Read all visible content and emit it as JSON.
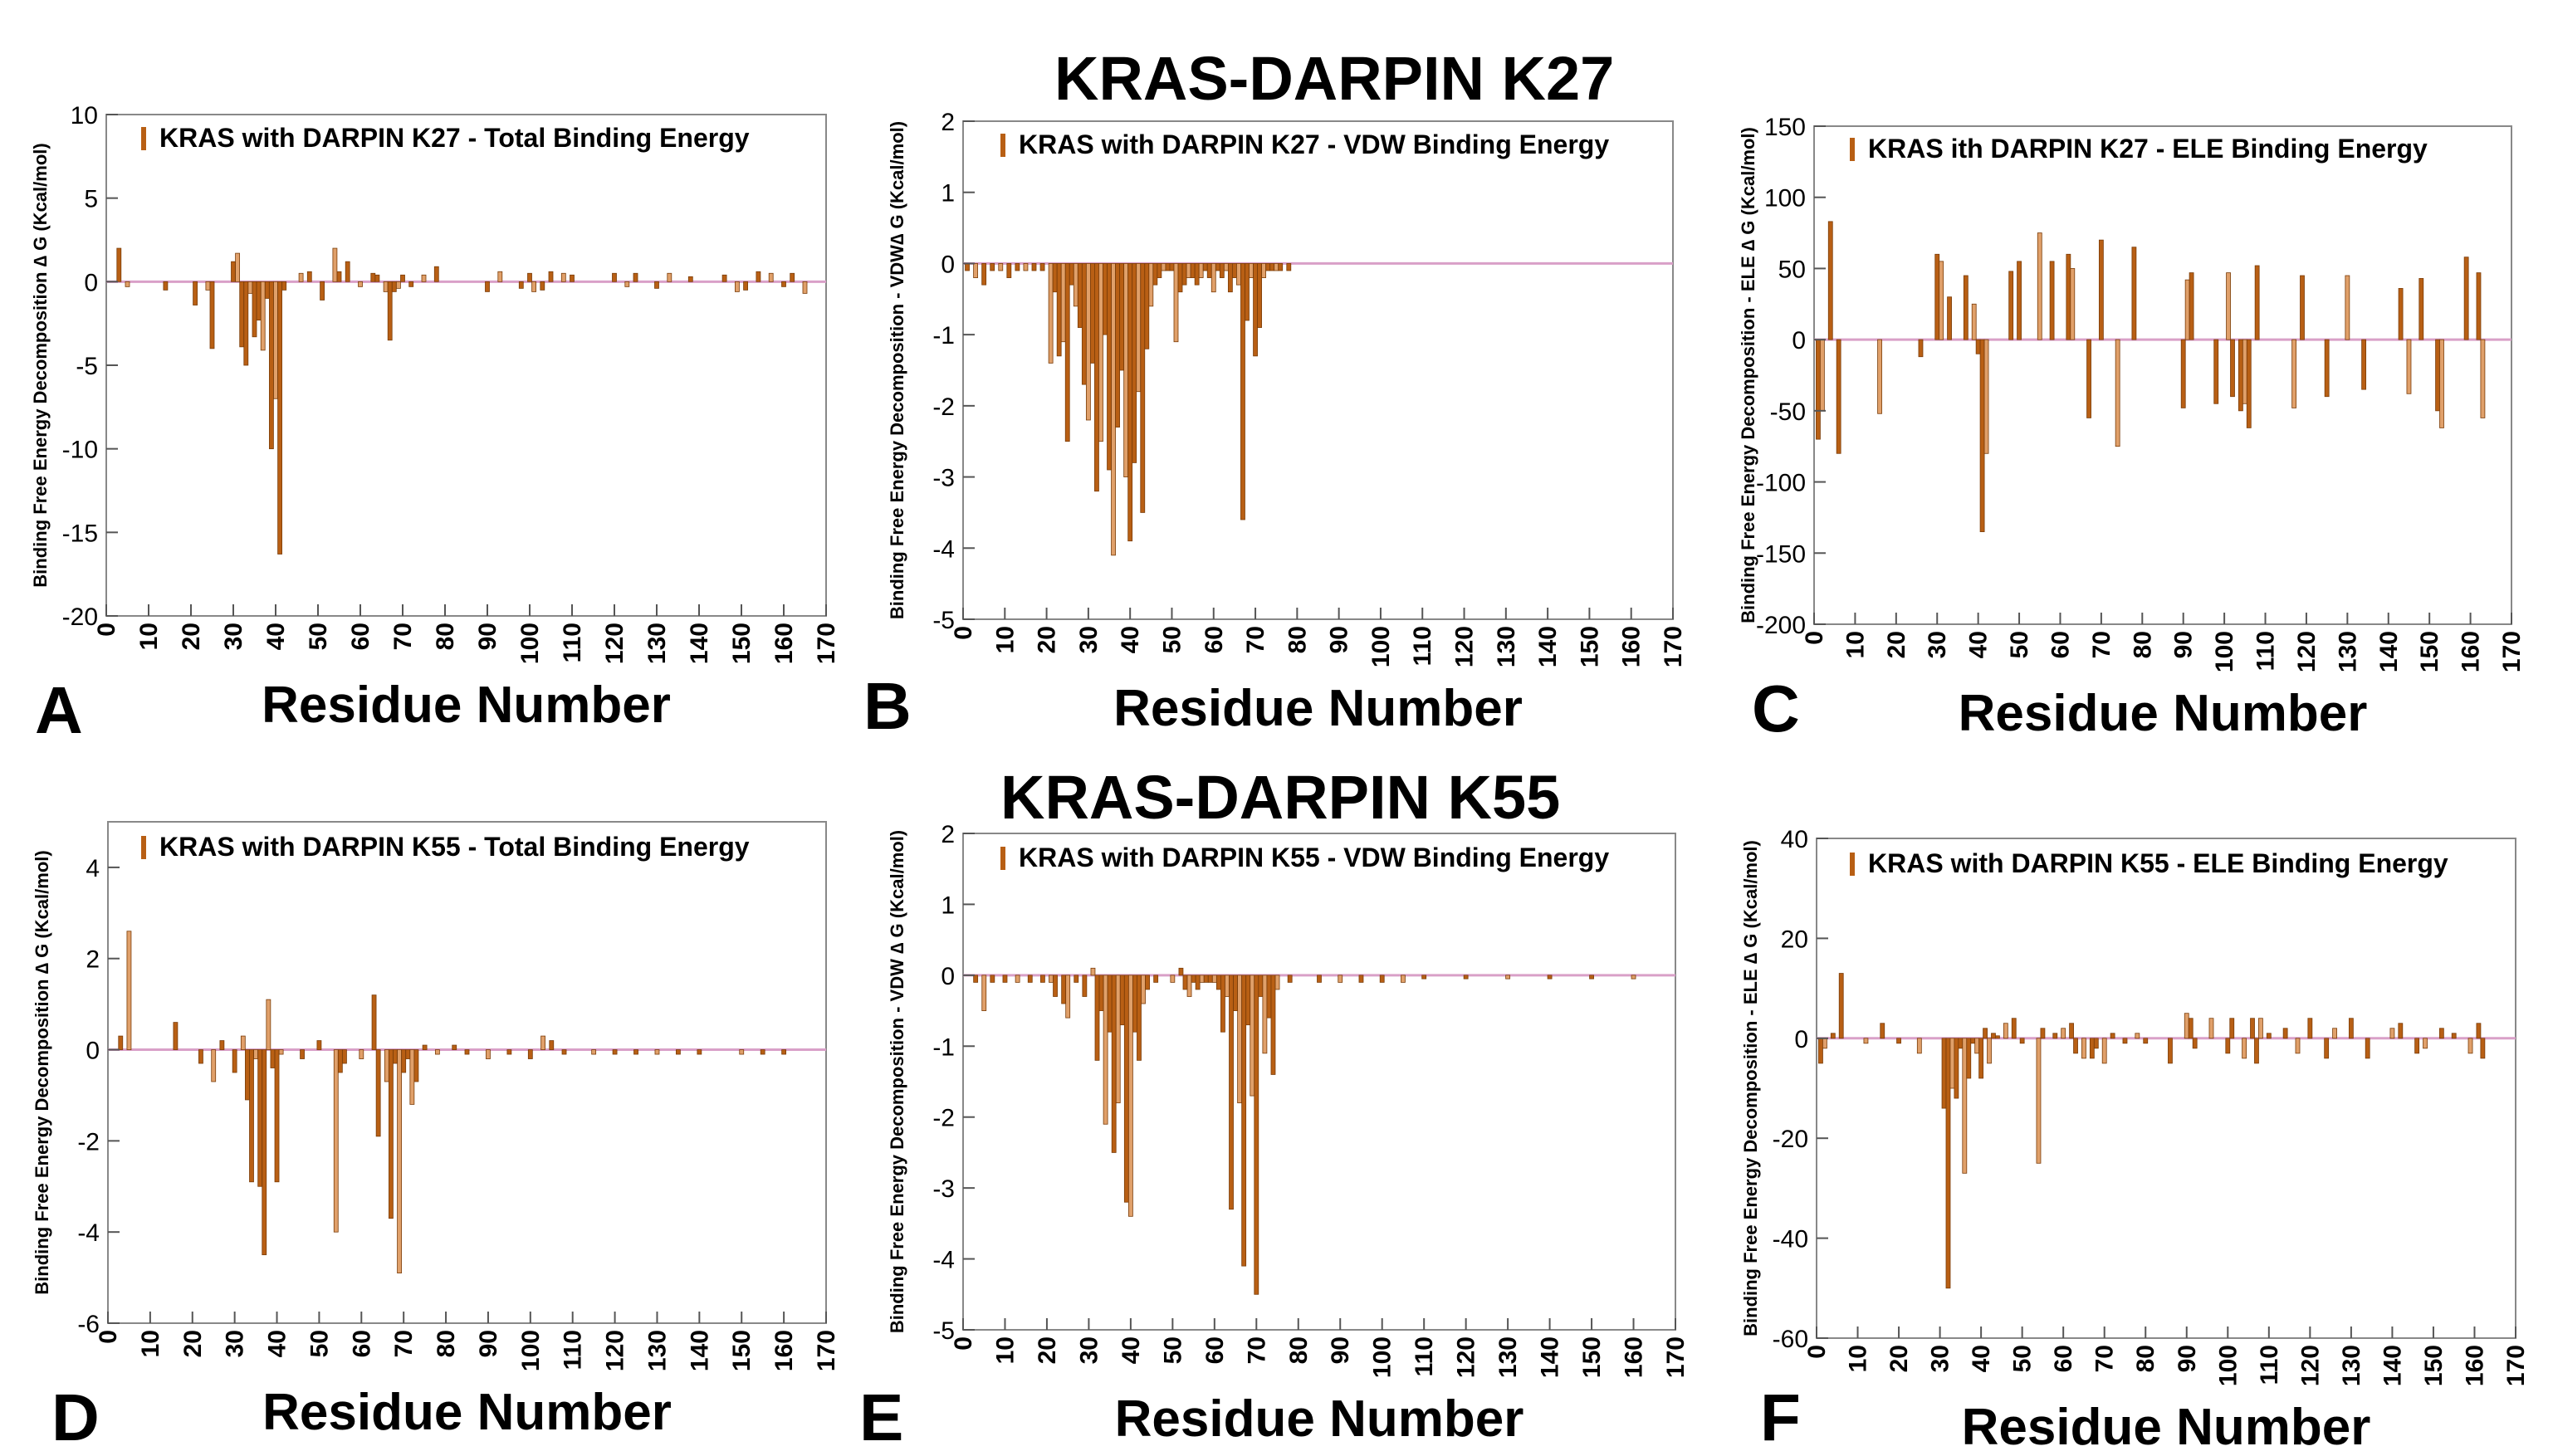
{
  "group_titles": {
    "k27": "KRAS-DARPIN K27",
    "k55": "KRAS-DARPIN K55"
  },
  "colors": {
    "bar_dark": "#b85f14",
    "bar_light": "#e0a06a",
    "zero_line": "#d9a0c8",
    "axis": "#888888"
  },
  "chart_data": [
    {
      "panel": "A",
      "type": "bar",
      "legend": "KRAS with DARPIN K27 - Total Binding Energy",
      "xlabel": "Residue Number",
      "ylabel": "Binding Free Energy Decomposition ∆ G (Kcal/mol)",
      "xlim": [
        0,
        170
      ],
      "ylim": [
        -20,
        10
      ],
      "xticks": [
        0,
        10,
        20,
        30,
        40,
        50,
        60,
        70,
        80,
        90,
        100,
        110,
        120,
        130,
        140,
        150,
        160,
        170
      ],
      "yticks": [
        10,
        5,
        0,
        -5,
        -10,
        -15,
        -20
      ],
      "x": [
        3,
        5,
        14,
        21,
        24,
        25,
        30,
        31,
        32,
        33,
        34,
        35,
        36,
        37,
        38,
        39,
        40,
        41,
        42,
        46,
        48,
        51,
        54,
        55,
        57,
        60,
        63,
        64,
        66,
        67,
        68,
        69,
        70,
        72,
        75,
        78,
        90,
        93,
        98,
        100,
        101,
        103,
        105,
        108,
        110,
        120,
        123,
        125,
        130,
        133,
        138,
        146,
        149,
        151,
        154,
        157,
        160,
        162,
        165
      ],
      "values": [
        2.0,
        -0.3,
        -0.5,
        -1.4,
        -0.5,
        -4.0,
        1.2,
        1.7,
        -3.9,
        -5.0,
        -0.7,
        -3.3,
        -2.3,
        -4.1,
        -1.0,
        -10.0,
        -7.0,
        -16.3,
        -0.5,
        0.5,
        0.6,
        -1.1,
        2.0,
        0.6,
        1.2,
        -0.3,
        0.5,
        0.4,
        -0.6,
        -3.5,
        -0.6,
        -0.4,
        0.4,
        -0.3,
        0.4,
        0.9,
        -0.6,
        0.6,
        -0.4,
        0.5,
        -0.6,
        -0.5,
        0.6,
        0.5,
        0.4,
        0.5,
        -0.3,
        0.5,
        -0.4,
        0.5,
        0.3,
        0.4,
        -0.6,
        -0.5,
        0.6,
        0.5,
        -0.3,
        0.5,
        -0.7
      ]
    },
    {
      "panel": "B",
      "type": "bar",
      "legend": "KRAS with DARPIN K27 - VDW Binding Energy",
      "xlabel": "Residue Number",
      "ylabel": "Binding Free Energy Decomposition  - VDW∆ G (Kcal/mol)",
      "xlim": [
        0,
        170
      ],
      "ylim": [
        -5,
        2
      ],
      "xticks": [
        0,
        10,
        20,
        30,
        40,
        50,
        60,
        70,
        80,
        90,
        100,
        110,
        120,
        130,
        140,
        150,
        160,
        170
      ],
      "yticks": [
        2,
        1,
        0,
        -1,
        -2,
        -3,
        -4,
        -5
      ],
      "x": [
        1,
        3,
        5,
        7,
        9,
        11,
        13,
        15,
        17,
        19,
        21,
        22,
        23,
        24,
        25,
        26,
        27,
        28,
        29,
        30,
        31,
        32,
        33,
        34,
        35,
        36,
        37,
        38,
        39,
        40,
        41,
        42,
        43,
        44,
        45,
        46,
        47,
        48,
        49,
        50,
        51,
        52,
        53,
        54,
        55,
        56,
        57,
        58,
        59,
        60,
        61,
        62,
        63,
        64,
        65,
        66,
        67,
        68,
        69,
        70,
        71,
        72,
        73,
        74,
        75,
        76,
        78
      ],
      "values": [
        -0.1,
        -0.2,
        -0.3,
        -0.1,
        -0.1,
        -0.2,
        -0.1,
        -0.1,
        -0.1,
        -0.1,
        -1.4,
        -0.4,
        -1.3,
        -1.1,
        -2.5,
        -0.3,
        -0.6,
        -0.9,
        -1.7,
        -2.2,
        -1.4,
        -3.2,
        -2.5,
        -1.0,
        -2.9,
        -4.1,
        -2.3,
        -1.5,
        -3.0,
        -3.9,
        -2.8,
        -1.8,
        -3.5,
        -1.2,
        -0.6,
        -0.3,
        -0.2,
        -0.1,
        -0.1,
        -0.1,
        -1.1,
        -0.4,
        -0.3,
        -0.2,
        -0.2,
        -0.3,
        -0.2,
        -0.1,
        -0.2,
        -0.4,
        -0.1,
        -0.2,
        -0.1,
        -0.4,
        -0.2,
        -0.3,
        -3.6,
        -0.8,
        -0.2,
        -1.3,
        -0.9,
        -0.2,
        -0.1,
        -0.1,
        -0.1,
        -0.1,
        -0.1
      ]
    },
    {
      "panel": "C",
      "type": "bar",
      "legend": "KRAS ith DARPIN K27 - ELE Binding Energy",
      "xlabel": "Residue Number",
      "ylabel": "Binding Free Energy Decomposition  - ELE ∆ G (Kcal/mol)",
      "xlim": [
        0,
        170
      ],
      "ylim": [
        -200,
        150
      ],
      "xticks": [
        0,
        10,
        20,
        30,
        40,
        50,
        60,
        70,
        80,
        90,
        100,
        110,
        120,
        130,
        140,
        150,
        160,
        170
      ],
      "yticks": [
        150,
        100,
        50,
        0,
        -50,
        -100,
        -150,
        -200
      ],
      "x": [
        1,
        2,
        4,
        6,
        16,
        26,
        30,
        31,
        33,
        37,
        39,
        40,
        41,
        42,
        48,
        50,
        55,
        58,
        62,
        63,
        67,
        70,
        74,
        78,
        90,
        91,
        92,
        98,
        101,
        102,
        104,
        105,
        106,
        108,
        117,
        119,
        125,
        130,
        134,
        143,
        145,
        148,
        152,
        153,
        159,
        162,
        163
      ],
      "values": [
        -70,
        -50,
        83,
        -80,
        -52,
        -12,
        60,
        55,
        30,
        45,
        25,
        -10,
        -135,
        -80,
        48,
        55,
        75,
        55,
        60,
        50,
        -55,
        70,
        -75,
        65,
        -48,
        42,
        47,
        -45,
        47,
        -40,
        -50,
        -45,
        -62,
        52,
        -48,
        45,
        -40,
        45,
        -35,
        36,
        -38,
        43,
        -50,
        -62,
        58,
        47,
        -55
      ]
    },
    {
      "panel": "D",
      "type": "bar",
      "legend": "KRAS  with DARPIN K55 - Total Binding Energy",
      "xlabel": "Residue Number",
      "ylabel": "Binding Free Energy Decomposition  ∆ G (Kcal/mol)",
      "xlim": [
        0,
        170
      ],
      "ylim": [
        -6,
        5
      ],
      "xticks": [
        0,
        10,
        20,
        30,
        40,
        50,
        60,
        70,
        80,
        90,
        100,
        110,
        120,
        130,
        140,
        150,
        160,
        170
      ],
      "yticks": [
        4,
        2,
        0,
        -2,
        -4,
        -6
      ],
      "x": [
        3,
        5,
        16,
        22,
        25,
        27,
        30,
        32,
        33,
        34,
        35,
        36,
        37,
        38,
        39,
        40,
        41,
        46,
        50,
        54,
        55,
        56,
        60,
        63,
        64,
        66,
        67,
        68,
        69,
        70,
        71,
        72,
        73,
        75,
        78,
        82,
        85,
        90,
        95,
        100,
        103,
        105,
        108,
        115,
        120,
        125,
        130,
        135,
        140,
        150,
        155,
        160
      ],
      "values": [
        0.3,
        2.6,
        0.6,
        -0.3,
        -0.7,
        0.2,
        -0.5,
        0.3,
        -1.1,
        -2.9,
        -0.2,
        -3.0,
        -4.5,
        1.1,
        -0.4,
        -2.9,
        -0.1,
        -0.2,
        0.2,
        -4.0,
        -0.5,
        -0.3,
        -0.2,
        1.2,
        -1.9,
        -0.7,
        -3.7,
        -0.3,
        -4.9,
        -0.5,
        -0.2,
        -1.2,
        -0.7,
        0.1,
        -0.1,
        0.1,
        -0.1,
        -0.2,
        -0.1,
        -0.2,
        0.3,
        0.2,
        -0.1,
        -0.1,
        -0.1,
        -0.1,
        -0.1,
        -0.1,
        -0.1,
        -0.1,
        -0.1,
        -0.1
      ]
    },
    {
      "panel": "E",
      "type": "bar",
      "legend": "KRAS with DARPIN K55 - VDW Binding Energy",
      "xlabel": "Residue Number",
      "ylabel": "Binding Free Energy Decomposition - VDW  ∆ G (Kcal/mol)",
      "xlim": [
        0,
        170
      ],
      "ylim": [
        -5,
        2
      ],
      "xticks": [
        0,
        10,
        20,
        30,
        40,
        50,
        60,
        70,
        80,
        90,
        100,
        110,
        120,
        130,
        140,
        150,
        160,
        170
      ],
      "yticks": [
        2,
        1,
        0,
        -1,
        -2,
        -3,
        -4,
        -5
      ],
      "x": [
        3,
        5,
        7,
        10,
        13,
        16,
        19,
        21,
        22,
        24,
        25,
        27,
        29,
        31,
        32,
        33,
        34,
        35,
        36,
        37,
        38,
        39,
        40,
        41,
        42,
        43,
        44,
        46,
        50,
        52,
        53,
        54,
        55,
        56,
        57,
        58,
        59,
        60,
        61,
        62,
        63,
        64,
        65,
        66,
        67,
        68,
        69,
        70,
        71,
        72,
        73,
        74,
        75,
        78,
        85,
        90,
        95,
        100,
        105,
        110,
        120,
        130,
        140,
        150,
        160
      ],
      "values": [
        -0.1,
        -0.5,
        -0.1,
        -0.1,
        -0.1,
        -0.1,
        -0.1,
        -0.1,
        -0.3,
        -0.4,
        -0.6,
        -0.1,
        -0.3,
        0.1,
        -1.2,
        -0.5,
        -2.1,
        -0.8,
        -2.5,
        -1.8,
        -0.7,
        -3.2,
        -3.4,
        -0.8,
        -1.2,
        -0.4,
        -0.2,
        -0.1,
        -0.1,
        0.1,
        -0.2,
        -0.3,
        -0.1,
        -0.2,
        -0.1,
        -0.1,
        -0.1,
        -0.1,
        -0.2,
        -0.8,
        -0.3,
        -3.3,
        -0.5,
        -1.8,
        -4.1,
        -0.7,
        -1.7,
        -4.5,
        -0.3,
        -1.1,
        -0.6,
        -1.4,
        -0.2,
        -0.1,
        -0.1,
        -0.1,
        -0.1,
        -0.1,
        -0.1,
        -0.05,
        -0.05,
        -0.05,
        -0.05,
        -0.05,
        -0.05
      ]
    },
    {
      "panel": "F",
      "type": "bar",
      "legend": "KRAS with DARPIN K55 - ELE Binding Energy",
      "xlabel": "Residue Number",
      "ylabel": "Binding Free Energy Decomposition  - ELE ∆ G (Kcal/mol)",
      "xlim": [
        0,
        170
      ],
      "ylim": [
        -60,
        40
      ],
      "xticks": [
        0,
        10,
        20,
        30,
        40,
        50,
        60,
        70,
        80,
        90,
        100,
        110,
        120,
        130,
        140,
        150,
        160,
        170
      ],
      "yticks": [
        40,
        20,
        0,
        -20,
        -40,
        -60
      ],
      "x": [
        1,
        2,
        4,
        6,
        12,
        16,
        20,
        25,
        31,
        32,
        33,
        34,
        35,
        36,
        37,
        38,
        39,
        40,
        41,
        42,
        43,
        44,
        46,
        48,
        50,
        54,
        55,
        58,
        60,
        62,
        63,
        65,
        67,
        68,
        70,
        72,
        75,
        78,
        80,
        86,
        90,
        91,
        92,
        96,
        100,
        101,
        104,
        106,
        107,
        108,
        110,
        114,
        117,
        120,
        124,
        126,
        130,
        134,
        140,
        142,
        146,
        148,
        152,
        155,
        159,
        161,
        162
      ],
      "values": [
        -5,
        -2,
        1,
        13,
        -1,
        3,
        -1,
        -3,
        -14,
        -50,
        -10,
        -12,
        -2,
        -27,
        -8,
        -1,
        -3,
        -8,
        2,
        -5,
        1,
        0.5,
        3,
        4,
        -1,
        -25,
        2,
        1,
        2,
        3,
        -3,
        -4,
        -4,
        -2,
        -5,
        1,
        -1,
        1,
        -1,
        -5,
        5,
        4,
        -2,
        4,
        -3,
        4,
        -4,
        4,
        -5,
        4,
        1,
        2,
        -3,
        4,
        -4,
        2,
        4,
        -4,
        2,
        3,
        -3,
        -2,
        2,
        1,
        -3,
        3,
        -4
      ]
    }
  ]
}
